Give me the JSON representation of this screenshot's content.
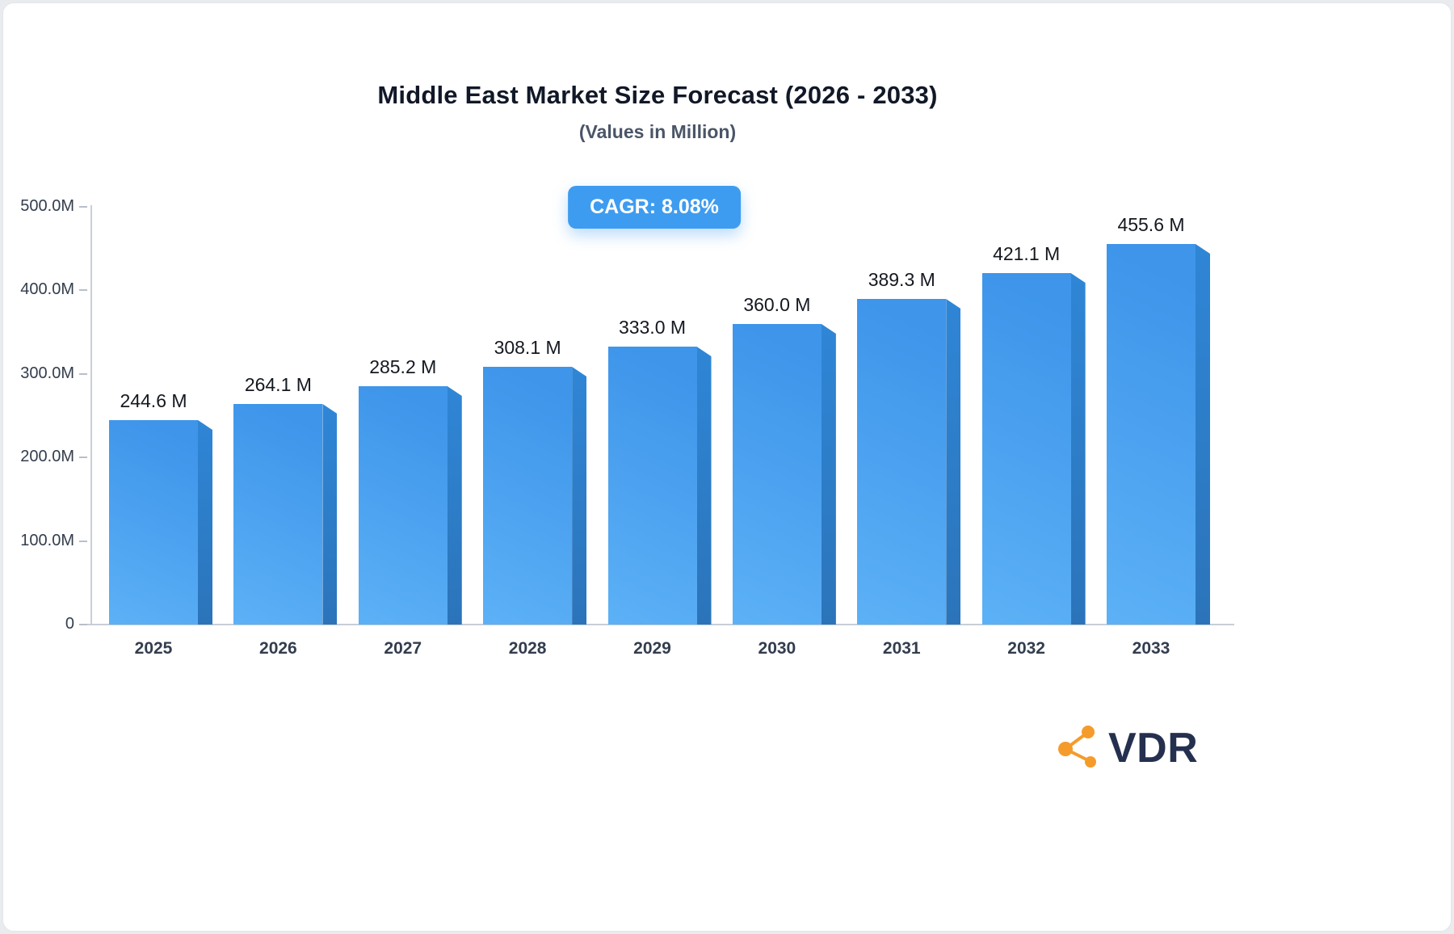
{
  "header": {
    "title": "Middle East Market Size Forecast (2026 - 2033)",
    "subtitle": "(Values in Million)"
  },
  "badge": {
    "label": "CAGR: 8.08%",
    "color": "#3e9cf0"
  },
  "chart_data": {
    "type": "bar",
    "title": "Middle East Market Size Forecast (2026 - 2033)",
    "subtitle": "(Values in Million)",
    "categories": [
      "2025",
      "2026",
      "2027",
      "2028",
      "2029",
      "2030",
      "2031",
      "2032",
      "2033"
    ],
    "values": [
      244.6,
      264.1,
      285.2,
      308.1,
      333.0,
      360.0,
      389.3,
      421.1,
      455.6
    ],
    "value_labels": [
      "244.6 M",
      "264.1 M",
      "285.2 M",
      "308.1 M",
      "333.0 M",
      "360.0 M",
      "389.3 M",
      "421.1 M",
      "455.6 M"
    ],
    "xlabel": "",
    "ylabel": "",
    "ylim": [
      0,
      500
    ],
    "ytick_labels": [
      "500.0M",
      "400.0M",
      "300.0M",
      "200.0M",
      "100.0M",
      "0"
    ],
    "ytick_values": [
      500,
      400,
      300,
      200,
      100,
      0
    ],
    "grid": false,
    "legend": false,
    "annotations": [
      "CAGR: 8.08%"
    ],
    "colors": {
      "bar_face_light": "#5cb1f6",
      "bar_face": "#3e95ea",
      "bar_side_top": "#2f86d6",
      "bar_side": "#2b74ba",
      "axis": "#c9ced6"
    }
  },
  "logo": {
    "text": "VDR",
    "icon": "network-nodes-icon",
    "icon_color": "#f59b2b",
    "text_color": "#25304f"
  }
}
